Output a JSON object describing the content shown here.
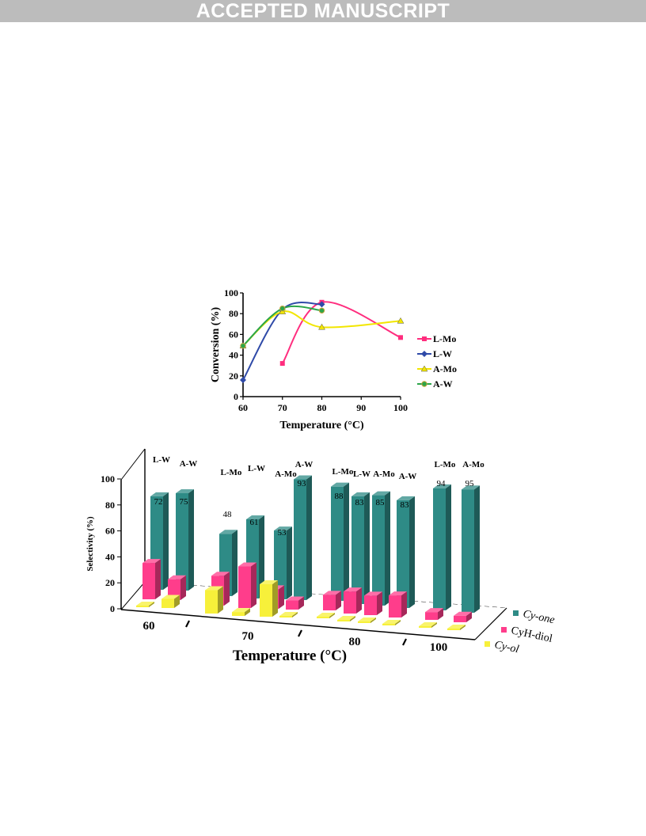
{
  "banner": {
    "text": "ACCEPTED MANUSCRIPT"
  },
  "chart_data": [
    {
      "type": "line",
      "title": "",
      "xlabel": "Temperature (°C)",
      "ylabel": "Conversion (%)",
      "xlim": [
        60,
        100
      ],
      "ylim": [
        0,
        100
      ],
      "xticks": [
        "60",
        "70",
        "80",
        "90",
        "100"
      ],
      "yticks": [
        "0",
        "20",
        "40",
        "60",
        "80",
        "100"
      ],
      "grid": false,
      "legend_position": "right",
      "series": [
        {
          "name": "L-Mo",
          "color": "#ff2d7e",
          "marker": "square",
          "x": [
            70,
            80,
            100
          ],
          "y": [
            32,
            91,
            57
          ]
        },
        {
          "name": "L-W",
          "color": "#2f4aa8",
          "marker": "diamond",
          "x": [
            60,
            70,
            80
          ],
          "y": [
            16,
            84,
            89
          ]
        },
        {
          "name": "A-Mo",
          "color": "#f2e600",
          "marker": "triangle",
          "x": [
            60,
            70,
            80,
            100
          ],
          "y": [
            49,
            82,
            67,
            73
          ]
        },
        {
          "name": "A-W",
          "color": "#2ca64a",
          "marker": "circle",
          "x": [
            60,
            70,
            80
          ],
          "y": [
            49,
            85,
            83
          ]
        }
      ]
    },
    {
      "type": "bar",
      "title": "",
      "xlabel": "Temperature (°C)",
      "ylabel": "Selectivity (%)",
      "ylim": [
        0,
        100
      ],
      "yticks": [
        "0",
        "20",
        "40",
        "60",
        "80",
        "100"
      ],
      "groups": [
        "60",
        "70",
        "80",
        "100"
      ],
      "legend_position": "bottom-right",
      "catalysts": [
        {
          "group": "60",
          "label": "L-W",
          "cy_one": 72,
          "cyh_diol": 28,
          "cy_ol": 0
        },
        {
          "group": "60",
          "label": "A-W",
          "cy_one": 75,
          "cyh_diol": 16,
          "cy_ol": 7
        },
        {
          "group": "70",
          "label": "L-Mo",
          "cy_one": 48,
          "cyh_diol": 23,
          "cy_ol": 18
        },
        {
          "group": "70",
          "label": "L-W",
          "cy_one": 61,
          "cyh_diol": 32,
          "cy_ol": 3
        },
        {
          "group": "70",
          "label": "A-Mo",
          "cy_one": 53,
          "cyh_diol": 15,
          "cy_ol": 25
        },
        {
          "group": "70",
          "label": "A-W",
          "cy_one": 93,
          "cyh_diol": 7,
          "cy_ol": 0
        },
        {
          "group": "80",
          "label": "L-Mo",
          "cy_one": 88,
          "cyh_diol": 12,
          "cy_ol": 0
        },
        {
          "group": "80",
          "label": "L-W",
          "cy_one": 83,
          "cyh_diol": 17,
          "cy_ol": 0
        },
        {
          "group": "80",
          "label": "A-Mo",
          "cy_one": 85,
          "cyh_diol": 15,
          "cy_ol": 0
        },
        {
          "group": "80",
          "label": "A-W",
          "cy_one": 83,
          "cyh_diol": 17,
          "cy_ol": 0
        },
        {
          "group": "100",
          "label": "L-Mo",
          "cy_one": 94,
          "cyh_diol": 6,
          "cy_ol": 0
        },
        {
          "group": "100",
          "label": "A-Mo",
          "cy_one": 95,
          "cyh_diol": 5,
          "cy_ol": 0
        }
      ],
      "series": [
        {
          "name": "Cy-one",
          "color": "#2e8b86"
        },
        {
          "name": "CyH-diol",
          "color": "#ff3d8b"
        },
        {
          "name": "Cy-ol",
          "color": "#f7f03a"
        }
      ]
    }
  ]
}
